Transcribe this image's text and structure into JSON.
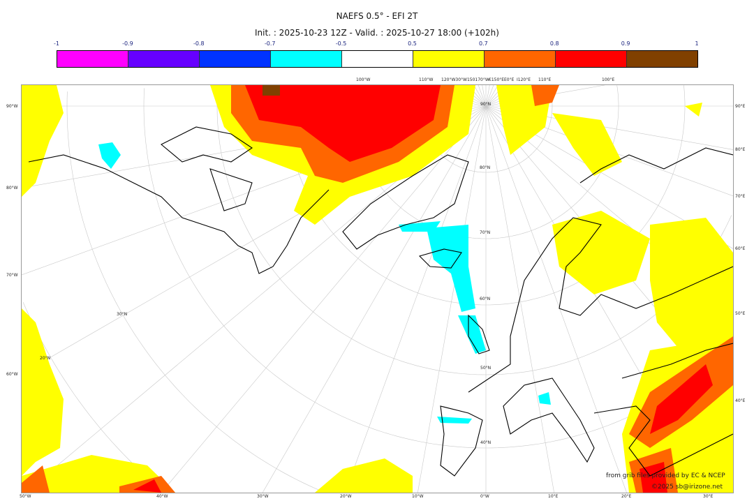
{
  "title": "NAEFS 0.5° - EFI 2T",
  "subtitle": "Init. : 2025-10-23 12Z - Valid. : 2025-10-27 18:00 (+102h)",
  "colorbar": {
    "ticks": [
      "-1",
      "-0.9",
      "-0.8",
      "-0.7",
      "-0.5",
      "0.5",
      "0.7",
      "0.8",
      "0.9",
      "1"
    ],
    "colors": [
      "#ff00ff",
      "#6600ff",
      "#0033ff",
      "#00ffff",
      "#ffffff",
      "#ffff00",
      "#ff6600",
      "#ff0000",
      "#804000"
    ]
  },
  "axes": {
    "bottom": [
      "50°W",
      "40°W",
      "30°W",
      "20°W",
      "10°W",
      "0°W",
      "10°E",
      "20°E",
      "30°E"
    ],
    "left": [
      "90°W",
      "80°W",
      "70°W",
      "60°W"
    ],
    "right": [
      "90°E",
      "80°E",
      "70°E",
      "60°E",
      "50°E",
      "40°E"
    ],
    "top": [
      "100°W",
      "110°W",
      "120°W30°W150170°W",
      "€150°E",
      "E0°E",
      "I120°E",
      "110°E",
      "100°E"
    ],
    "lat_labels": [
      "90°N",
      "80°N",
      "70°N",
      "60°N",
      "50°N",
      "40°N",
      "30°N",
      "20°N"
    ]
  },
  "credits": {
    "source": "from grib files provided by EC & NCEP",
    "copyright": "©2025 sb@irizone.net"
  }
}
